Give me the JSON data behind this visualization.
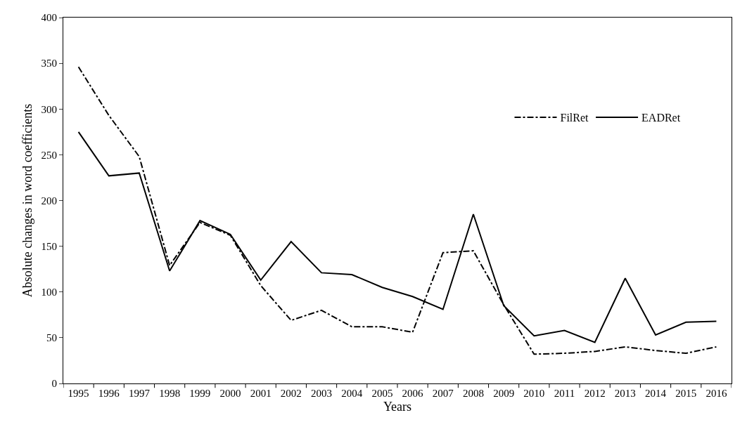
{
  "chart_data": {
    "type": "line",
    "xlabel": "Years",
    "ylabel": "Absolute changes in word coefficients",
    "categories": [
      "1995",
      "1996",
      "1997",
      "1998",
      "1999",
      "2000",
      "2001",
      "2002",
      "2003",
      "2004",
      "2005",
      "2006",
      "2007",
      "2008",
      "2009",
      "2010",
      "2011",
      "2012",
      "2013",
      "2014",
      "2015",
      "2016"
    ],
    "series": [
      {
        "name": "FilRet",
        "color": "#000000",
        "line_style": "dashdot",
        "values": [
          346,
          293,
          248,
          129,
          176,
          162,
          107,
          69,
          80,
          62,
          62,
          56,
          143,
          145,
          86,
          32,
          33,
          35,
          40,
          36,
          33,
          40
        ]
      },
      {
        "name": "EADRet",
        "color": "#000000",
        "line_style": "solid",
        "values": [
          275,
          227,
          230,
          123,
          178,
          163,
          113,
          155,
          121,
          119,
          105,
          95,
          81,
          185,
          85,
          52,
          58,
          45,
          115,
          53,
          67,
          68
        ]
      }
    ],
    "ylim": [
      0,
      400
    ],
    "yticks": [
      0,
      50,
      100,
      150,
      200,
      250,
      300,
      350,
      400
    ],
    "grid": false,
    "legend": "top right",
    "marker": "none"
  }
}
